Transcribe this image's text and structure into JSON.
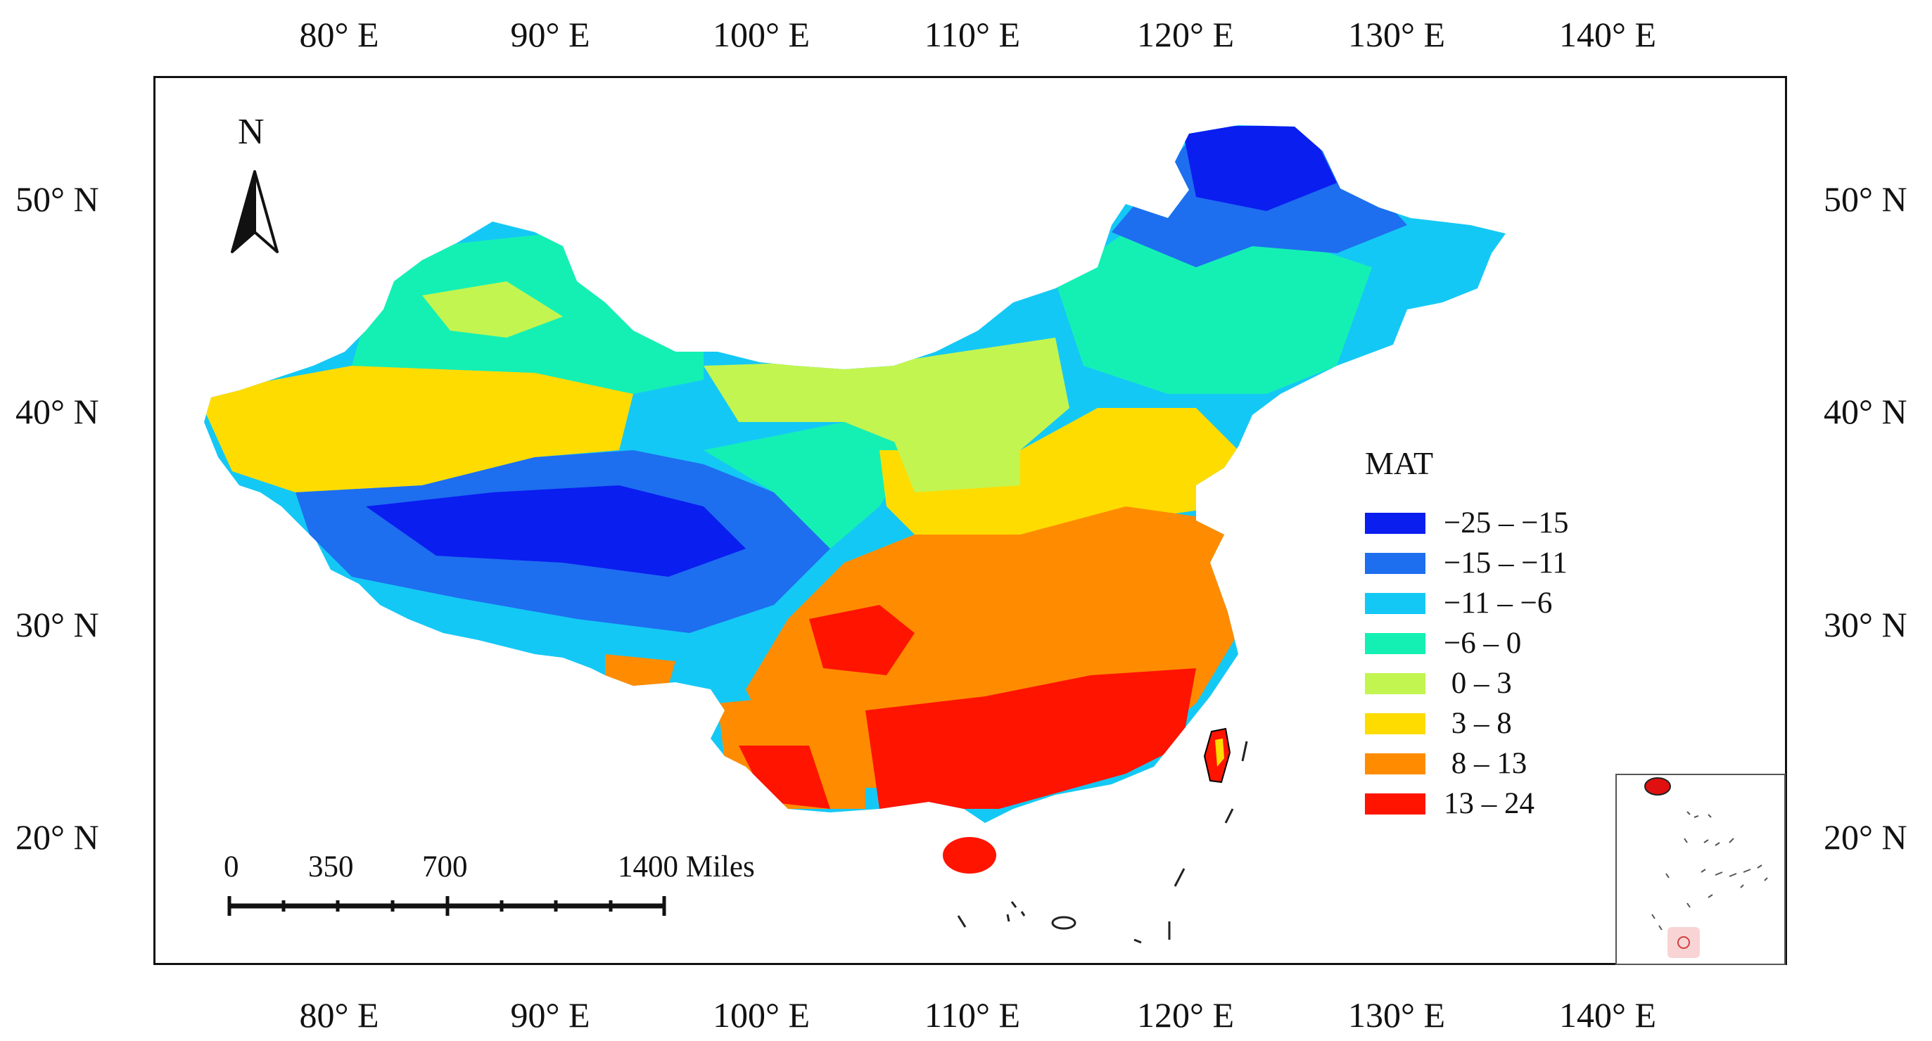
{
  "axes": {
    "top_labels": [
      "80° E",
      "90° E",
      "100° E",
      "110° E",
      "120° E",
      "130° E",
      "140° E"
    ],
    "bottom_labels": [
      "80° E",
      "90° E",
      "100° E",
      "110° E",
      "120° E",
      "130° E",
      "140° E"
    ],
    "left_labels": [
      "50° N",
      "40° N",
      "30° N",
      "20° N"
    ],
    "right_labels": [
      "50° N",
      "40° N",
      "30° N",
      "20° N"
    ]
  },
  "north_arrow": {
    "label": "N",
    "icon": "north-arrow-icon"
  },
  "scale_bar": {
    "labels": [
      "0",
      "350",
      "700",
      "1400 Miles"
    ],
    "icon": "scale-bar-icon"
  },
  "legend": {
    "title": "MAT",
    "items": [
      {
        "label": "−25 – −15",
        "color": "#0a1ef0"
      },
      {
        "label": "−15 – −11",
        "color": "#1e6ef0"
      },
      {
        "label": "−11 – −6",
        "color": "#14c8f5"
      },
      {
        "label": "−6 – 0",
        "color": "#14f0b4"
      },
      {
        "label": " 0 – 3",
        "color": "#c3f550"
      },
      {
        "label": " 3 – 8",
        "color": "#ffdc00"
      },
      {
        "label": " 8 – 13",
        "color": "#ff8c00"
      },
      {
        "label": "13 – 24",
        "color": "#ff1400"
      }
    ]
  }
}
